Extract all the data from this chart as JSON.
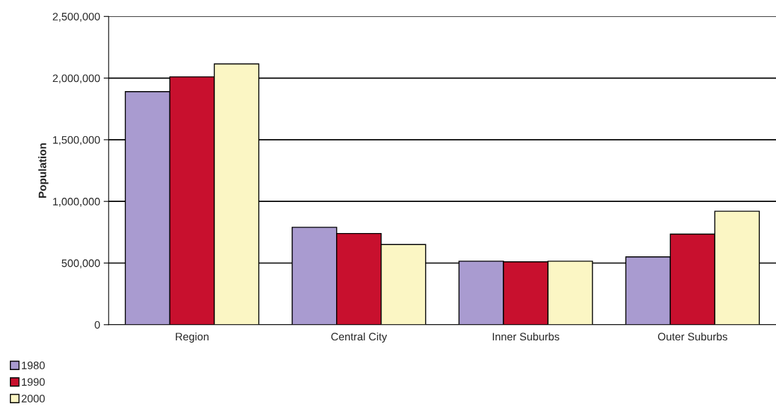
{
  "chart_data": {
    "type": "bar",
    "ylabel": "Population",
    "categories": [
      "Region",
      "Central City",
      "Inner Suburbs",
      "Outer Suburbs"
    ],
    "series": [
      {
        "name": "1980",
        "color": "#a99bd0",
        "values": [
          1890000,
          790000,
          515000,
          550000
        ]
      },
      {
        "name": "1990",
        "color": "#c8102e",
        "values": [
          2010000,
          740000,
          510000,
          735000
        ]
      },
      {
        "name": "2000",
        "color": "#fbf6c4",
        "values": [
          2115000,
          650000,
          515000,
          920000
        ]
      }
    ],
    "ylim": [
      0,
      2500000
    ],
    "yticks": [
      {
        "value": 0,
        "label": "0"
      },
      {
        "value": 500000,
        "label": "500,000"
      },
      {
        "value": 1000000,
        "label": "1,000,000"
      },
      {
        "value": 1500000,
        "label": "1,500,000"
      },
      {
        "value": 2000000,
        "label": "2,000,000"
      },
      {
        "value": 2500000,
        "label": "2,500,000"
      }
    ],
    "grid": "y",
    "legend": "bottom left"
  }
}
